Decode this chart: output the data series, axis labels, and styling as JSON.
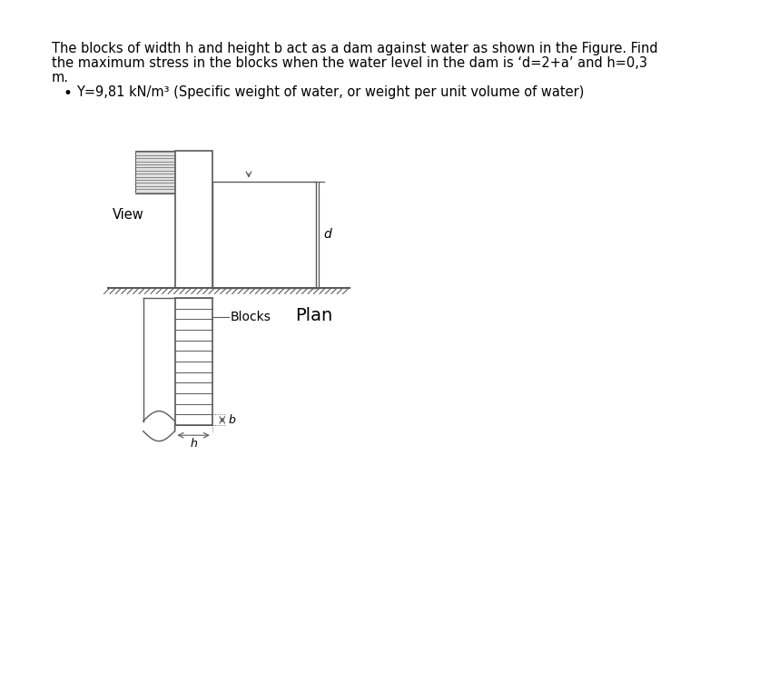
{
  "title_line1": "The blocks of width h and height b act as a dam against water as shown in the Figure. Find",
  "title_line2": "the maximum stress in the blocks when the water level in the dam is ‘d=2+a’ and h=0,3",
  "title_line3": "m.",
  "bullet": "Y=9,81 kN/m³ (Specific weight of water, or weight per unit volume of water)",
  "label_view": "View",
  "label_blocks": "Blocks",
  "label_plan": "Plan",
  "label_d": "d",
  "label_h": "h",
  "label_b": "b",
  "bg_color": "#ffffff",
  "line_color": "#5a5a5a",
  "text_color": "#000000",
  "plan_color": "#c87000",
  "text_fontsize": 10.5,
  "bullet_fontsize": 10.5,
  "label_fontsize": 10.5,
  "plan_fontsize": 14
}
